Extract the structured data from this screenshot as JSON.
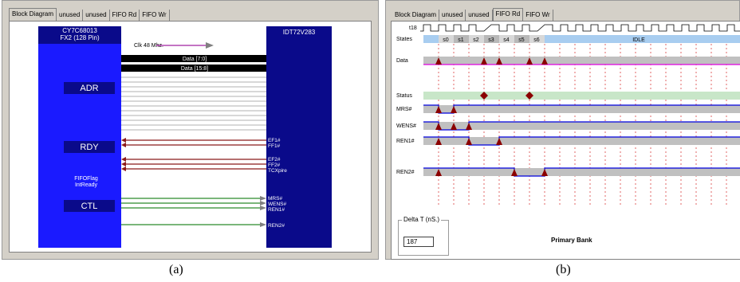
{
  "colors": {
    "chip_blue": "#1a1aff",
    "chip_navy": "#0a0a8a",
    "data_bus_black": "#000000",
    "rdy_arrow": "#8b1a1a",
    "ctl_arrow": "#2a8a2a",
    "clk_arrow": "#a020a0",
    "state_bar": "#a8cdf0",
    "status_bar": "#c8e6c8",
    "marker": "#8b0000",
    "trace_gray": "#c0c0c0",
    "trace_blue": "#0000dd",
    "data_pink": "#e000e0"
  },
  "left": {
    "tabs": [
      "Block Diagram",
      "unused",
      "unused",
      "FIFO Rd",
      "FIFO Wr"
    ],
    "active_tab": 0,
    "fx2": {
      "name": "CY7C68013",
      "package": "FX2 (128 Pin)"
    },
    "fifo_chip": {
      "name": "IDT72V283"
    },
    "clock_label": "Clk 48 Mhz.",
    "data_buses": [
      "Data [7:0]",
      "Data [15:8]"
    ],
    "groups": {
      "adr": "ADR",
      "rdy": "RDY",
      "ctl": "CTL"
    },
    "flag_labels": [
      "FIFOFlag",
      "IntReady"
    ],
    "rdy_signals": [
      "EF1#",
      "FF1#",
      "EF2#",
      "FF2#",
      "TCXpire"
    ],
    "ctl_signals": [
      "MRS#",
      "WENS#",
      "REN1#",
      "REN2#"
    ],
    "caption": "(a)"
  },
  "right": {
    "tabs": [
      "Block Diagram",
      "unused",
      "unused",
      "FIFO Rd",
      "FIFO Wr"
    ],
    "active_tab": 3,
    "clock_label": "t18",
    "states_label": "States",
    "states": [
      "s0",
      "s1",
      "s2",
      "s3",
      "s4",
      "s5",
      "s6"
    ],
    "idle_label": "IDLE",
    "signals": [
      "Data",
      "Status",
      "MRS#",
      "WENS#",
      "REN1#",
      "REN2#"
    ],
    "delta": {
      "legend": "Delta T (nS.)",
      "value": "187"
    },
    "bank_label": "Primary Bank",
    "caption": "(b)"
  }
}
